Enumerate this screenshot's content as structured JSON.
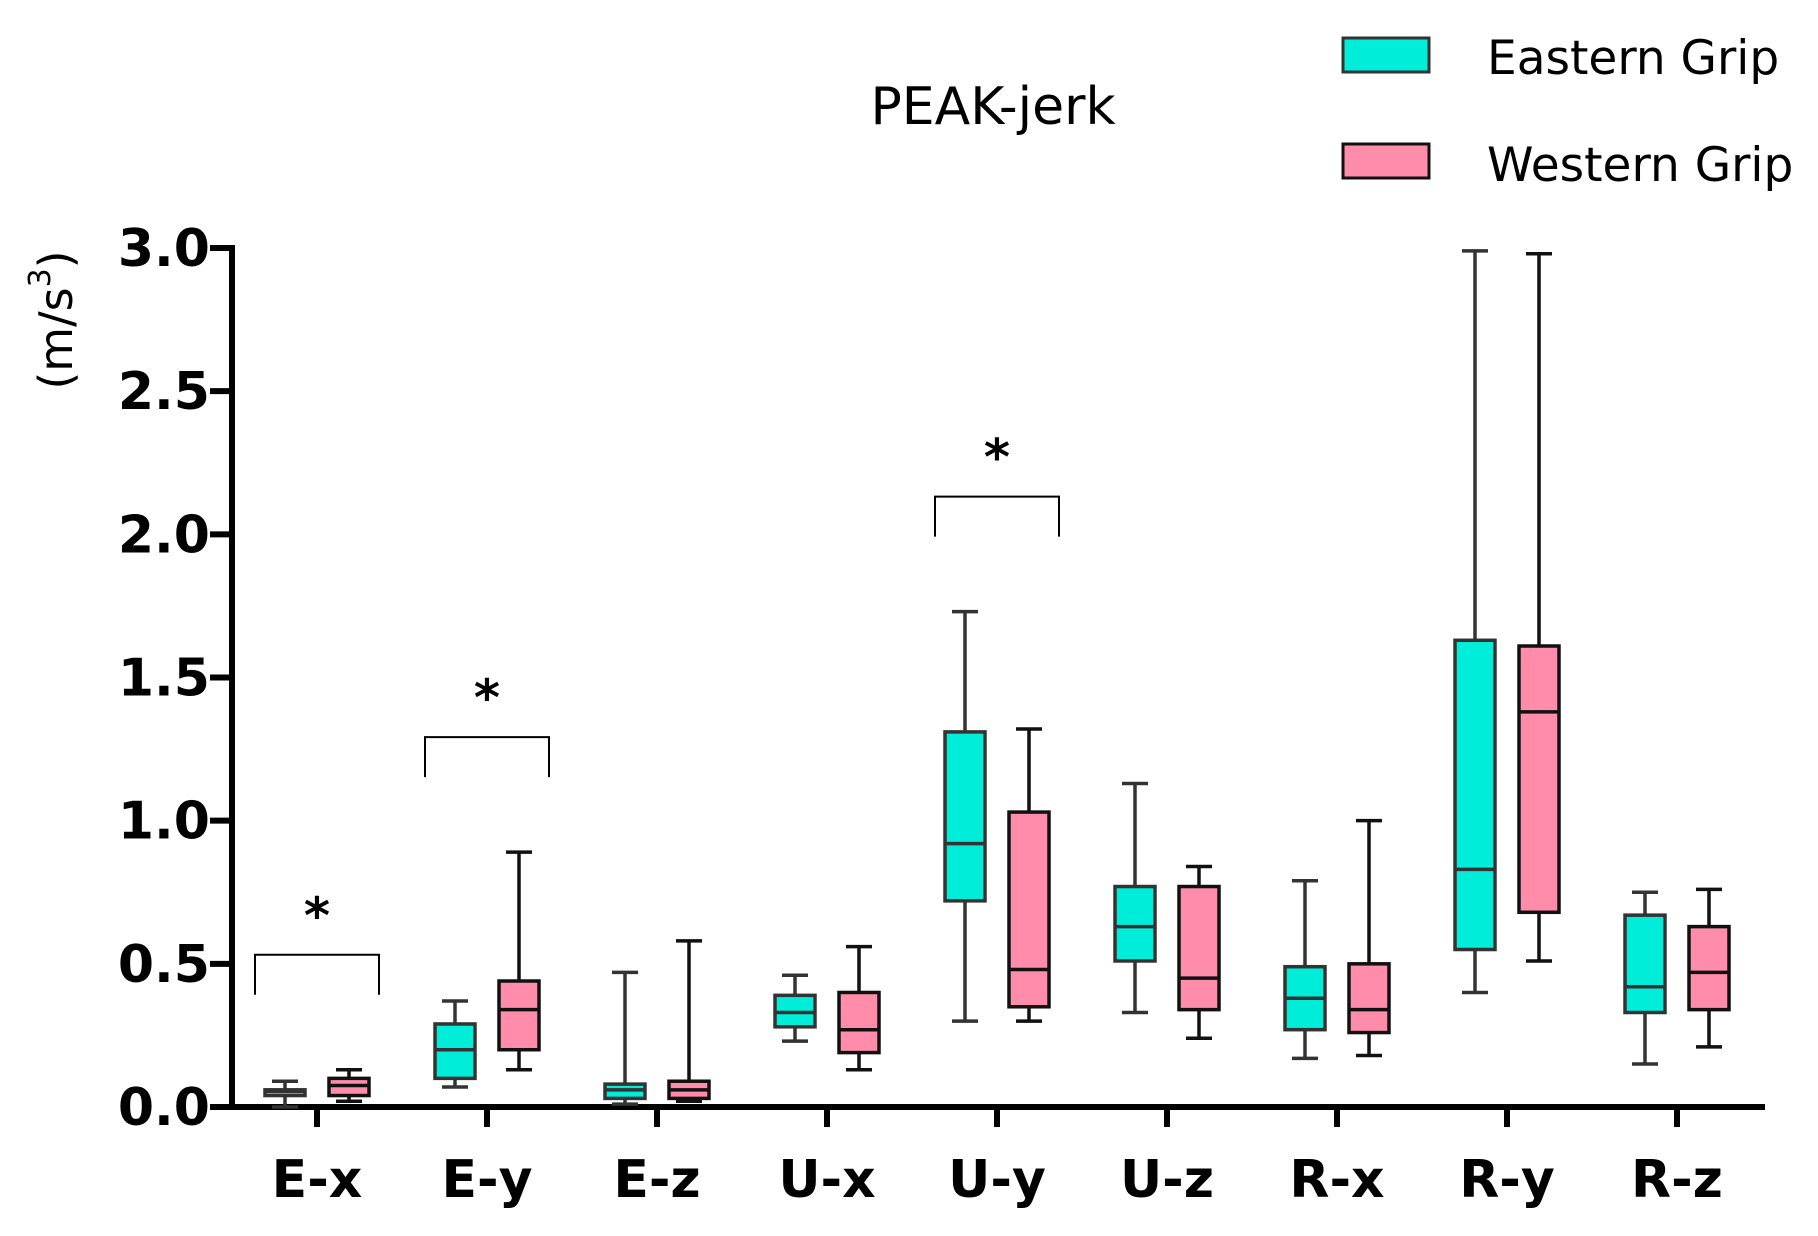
{
  "chart_data": {
    "type": "box",
    "title": "PEAK-jerk",
    "ylabel_main": "(m/s",
    "ylabel_sup": "3",
    "ylabel_close": ")",
    "ylim": [
      0,
      3.0
    ],
    "yticks": [
      "0.0",
      "0.5",
      "1.0",
      "1.5",
      "2.0",
      "2.5",
      "3.0"
    ],
    "categories": [
      "E-x",
      "E-y",
      "E-z",
      "U-x",
      "U-y",
      "U-z",
      "R-x",
      "R-y",
      "R-z"
    ],
    "colors": {
      "Eastern Grip": "#00EDDA",
      "Western Grip": "#FF8CAA",
      "axis": "#000000"
    },
    "series": [
      {
        "name": "Eastern Grip",
        "boxes": [
          {
            "min": 0.0,
            "q1": 0.04,
            "median": 0.055,
            "q3": 0.06,
            "max": 0.09
          },
          {
            "min": 0.07,
            "q1": 0.1,
            "median": 0.2,
            "q3": 0.29,
            "max": 0.37
          },
          {
            "min": 0.01,
            "q1": 0.03,
            "median": 0.06,
            "q3": 0.08,
            "max": 0.47
          },
          {
            "min": 0.23,
            "q1": 0.28,
            "median": 0.33,
            "q3": 0.39,
            "max": 0.46
          },
          {
            "min": 0.3,
            "q1": 0.72,
            "median": 0.92,
            "q3": 1.31,
            "max": 1.73
          },
          {
            "min": 0.33,
            "q1": 0.51,
            "median": 0.63,
            "q3": 0.77,
            "max": 1.13
          },
          {
            "min": 0.17,
            "q1": 0.27,
            "median": 0.38,
            "q3": 0.49,
            "max": 0.79
          },
          {
            "min": 0.4,
            "q1": 0.55,
            "median": 0.83,
            "q3": 1.63,
            "max": 2.99
          },
          {
            "min": 0.15,
            "q1": 0.33,
            "median": 0.42,
            "q3": 0.67,
            "max": 0.75
          }
        ]
      },
      {
        "name": "Western Grip",
        "boxes": [
          {
            "min": 0.02,
            "q1": 0.04,
            "median": 0.075,
            "q3": 0.1,
            "max": 0.13
          },
          {
            "min": 0.13,
            "q1": 0.2,
            "median": 0.34,
            "q3": 0.44,
            "max": 0.89
          },
          {
            "min": 0.02,
            "q1": 0.03,
            "median": 0.06,
            "q3": 0.09,
            "max": 0.58
          },
          {
            "min": 0.13,
            "q1": 0.19,
            "median": 0.27,
            "q3": 0.4,
            "max": 0.56
          },
          {
            "min": 0.3,
            "q1": 0.35,
            "median": 0.48,
            "q3": 1.03,
            "max": 1.32
          },
          {
            "min": 0.24,
            "q1": 0.34,
            "median": 0.45,
            "q3": 0.77,
            "max": 0.84
          },
          {
            "min": 0.18,
            "q1": 0.26,
            "median": 0.34,
            "q3": 0.5,
            "max": 1.0
          },
          {
            "min": 0.51,
            "q1": 0.68,
            "median": 1.38,
            "q3": 1.61,
            "max": 2.98
          },
          {
            "min": 0.21,
            "q1": 0.34,
            "median": 0.47,
            "q3": 0.63,
            "max": 0.76
          }
        ]
      }
    ],
    "significance": [
      {
        "category": "E-x",
        "label": "*"
      },
      {
        "category": "E-y",
        "label": "*"
      },
      {
        "category": "U-y",
        "label": "*"
      }
    ],
    "legend": [
      "Eastern Grip",
      "Western Grip"
    ],
    "legend_position": "top-right"
  }
}
